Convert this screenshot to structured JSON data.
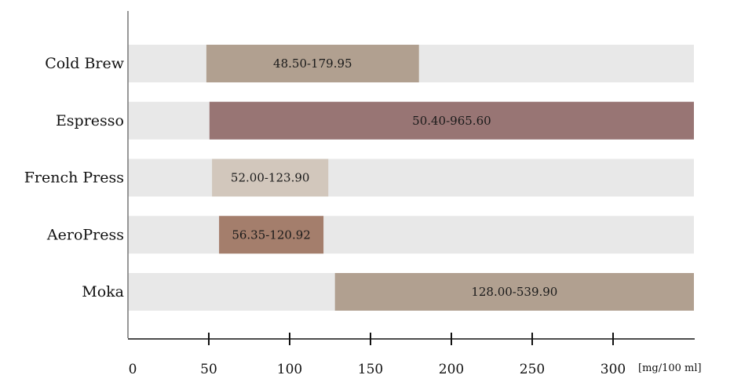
{
  "chart_data": {
    "type": "bar",
    "orientation": "horizontal",
    "bar_style": "floating-range",
    "categories": [
      "Cold Brew",
      "Espresso",
      "French Press",
      "AeroPress",
      "Moka"
    ],
    "ranges": [
      {
        "category": "Cold Brew",
        "low": 48.5,
        "high": 179.95,
        "label": "48.50-179.95",
        "color": "#b1a090"
      },
      {
        "category": "Espresso",
        "low": 50.4,
        "high": 965.6,
        "label": "50.40-965.60",
        "color": "#987574"
      },
      {
        "category": "French Press",
        "low": 52.0,
        "high": 123.9,
        "label": "52.00-123.90",
        "color": "#d2c7bc"
      },
      {
        "category": "AeroPress",
        "low": 56.35,
        "high": 120.92,
        "label": "56.35-120.92",
        "color": "#a47e6c"
      },
      {
        "category": "Moka",
        "low": 128.0,
        "high": 539.9,
        "label": "128.00-539.90",
        "color": "#b1a090"
      }
    ],
    "xlim": [
      0,
      350
    ],
    "xticks": [
      0,
      50,
      100,
      150,
      200,
      250,
      300
    ],
    "tick_labels": [
      "0",
      "50",
      "100",
      "150",
      "200",
      "250",
      "300"
    ],
    "xlabel": "[mg/100 ml]",
    "background_band_color": "#e8e8e8",
    "grid": false,
    "legend": "none"
  }
}
